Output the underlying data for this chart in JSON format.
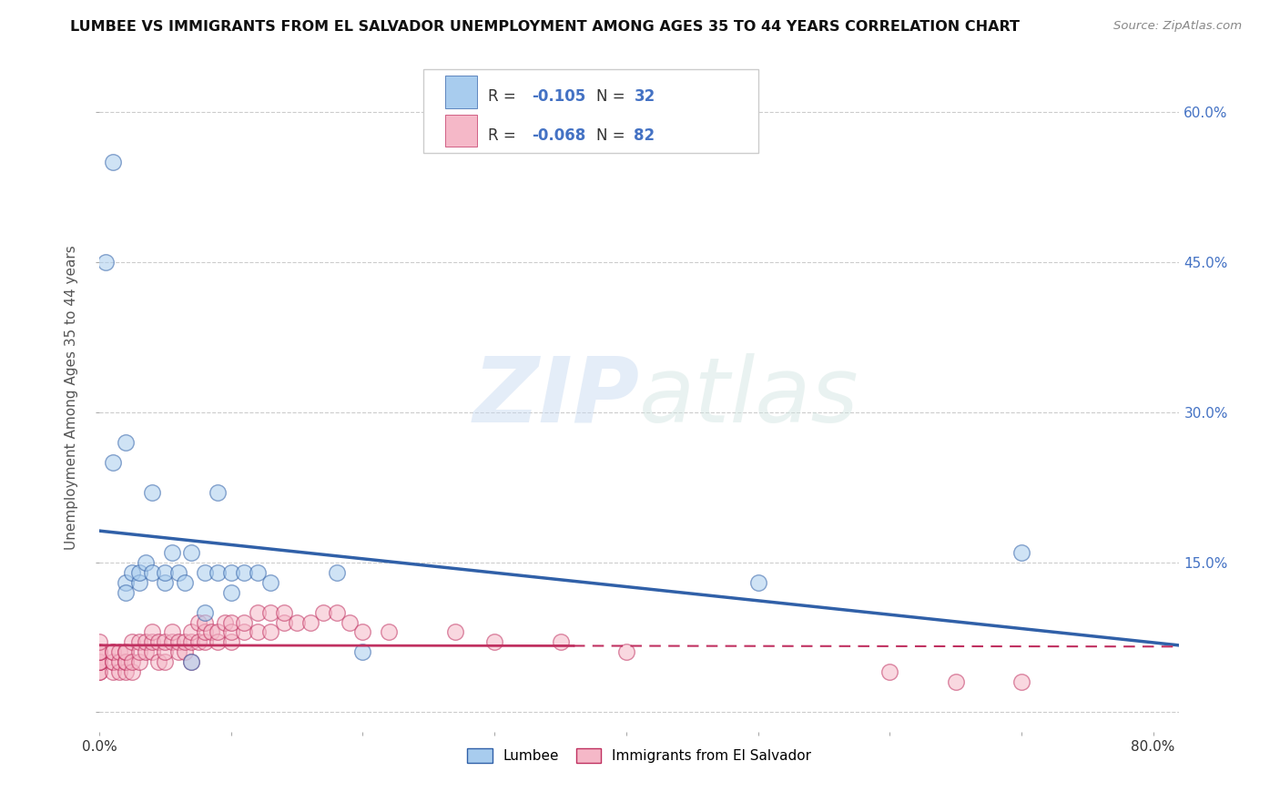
{
  "title": "LUMBEE VS IMMIGRANTS FROM EL SALVADOR UNEMPLOYMENT AMONG AGES 35 TO 44 YEARS CORRELATION CHART",
  "source": "Source: ZipAtlas.com",
  "ylabel": "Unemployment Among Ages 35 to 44 years",
  "xlim": [
    0.0,
    0.82
  ],
  "ylim": [
    -0.02,
    0.65
  ],
  "lumbee_R": -0.105,
  "lumbee_N": 32,
  "salvador_R": -0.068,
  "salvador_N": 82,
  "lumbee_color": "#a8ccee",
  "salvador_color": "#f5b8c8",
  "lumbee_line_color": "#3060a8",
  "salvador_line_color": "#c03060",
  "watermark_zip": "ZIP",
  "watermark_atlas": "atlas",
  "ylabel_ticks": [
    0.0,
    0.15,
    0.3,
    0.45,
    0.6
  ],
  "ylabel_labels_right": [
    "",
    "15.0%",
    "30.0%",
    "45.0%",
    "60.0%"
  ],
  "lumbee_scatter_x": [
    0.005,
    0.01,
    0.01,
    0.02,
    0.02,
    0.02,
    0.025,
    0.03,
    0.03,
    0.035,
    0.04,
    0.04,
    0.05,
    0.05,
    0.055,
    0.06,
    0.065,
    0.07,
    0.07,
    0.08,
    0.08,
    0.09,
    0.09,
    0.1,
    0.1,
    0.11,
    0.12,
    0.13,
    0.18,
    0.2,
    0.5,
    0.7
  ],
  "lumbee_scatter_y": [
    0.45,
    0.55,
    0.25,
    0.13,
    0.12,
    0.27,
    0.14,
    0.13,
    0.14,
    0.15,
    0.14,
    0.22,
    0.13,
    0.14,
    0.16,
    0.14,
    0.13,
    0.16,
    0.05,
    0.14,
    0.1,
    0.14,
    0.22,
    0.14,
    0.12,
    0.14,
    0.14,
    0.13,
    0.14,
    0.06,
    0.13,
    0.16
  ],
  "salvador_scatter_x": [
    0.0,
    0.0,
    0.0,
    0.0,
    0.0,
    0.0,
    0.0,
    0.0,
    0.0,
    0.0,
    0.01,
    0.01,
    0.01,
    0.01,
    0.01,
    0.015,
    0.015,
    0.015,
    0.02,
    0.02,
    0.02,
    0.02,
    0.02,
    0.025,
    0.025,
    0.025,
    0.03,
    0.03,
    0.03,
    0.035,
    0.035,
    0.04,
    0.04,
    0.04,
    0.045,
    0.045,
    0.05,
    0.05,
    0.05,
    0.055,
    0.055,
    0.06,
    0.06,
    0.065,
    0.065,
    0.07,
    0.07,
    0.07,
    0.075,
    0.075,
    0.08,
    0.08,
    0.08,
    0.085,
    0.09,
    0.09,
    0.095,
    0.1,
    0.1,
    0.1,
    0.11,
    0.11,
    0.12,
    0.12,
    0.13,
    0.13,
    0.14,
    0.14,
    0.15,
    0.16,
    0.17,
    0.18,
    0.19,
    0.2,
    0.22,
    0.27,
    0.3,
    0.35,
    0.4,
    0.6,
    0.65,
    0.7
  ],
  "salvador_scatter_y": [
    0.04,
    0.04,
    0.05,
    0.05,
    0.05,
    0.05,
    0.06,
    0.06,
    0.06,
    0.07,
    0.04,
    0.05,
    0.05,
    0.06,
    0.06,
    0.04,
    0.05,
    0.06,
    0.04,
    0.05,
    0.05,
    0.06,
    0.06,
    0.04,
    0.05,
    0.07,
    0.05,
    0.06,
    0.07,
    0.06,
    0.07,
    0.06,
    0.07,
    0.08,
    0.05,
    0.07,
    0.05,
    0.06,
    0.07,
    0.07,
    0.08,
    0.06,
    0.07,
    0.06,
    0.07,
    0.05,
    0.07,
    0.08,
    0.07,
    0.09,
    0.07,
    0.08,
    0.09,
    0.08,
    0.07,
    0.08,
    0.09,
    0.07,
    0.08,
    0.09,
    0.08,
    0.09,
    0.08,
    0.1,
    0.08,
    0.1,
    0.09,
    0.1,
    0.09,
    0.09,
    0.1,
    0.1,
    0.09,
    0.08,
    0.08,
    0.08,
    0.07,
    0.07,
    0.06,
    0.04,
    0.03,
    0.03
  ]
}
